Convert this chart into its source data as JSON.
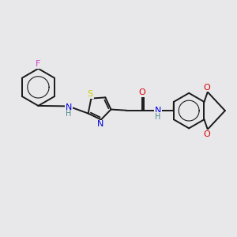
{
  "bg_color": "#e8e8eb",
  "bond_color": "#1a1a1a",
  "atom_colors": {
    "F": "#cc44cc",
    "N": "#0000dd",
    "S": "#cccc00",
    "O": "#dd0000",
    "H": "#448888",
    "C": "#1a1a1a"
  },
  "figsize": [
    3.0,
    3.0
  ],
  "dpi": 100,
  "xlim": [
    0,
    12
  ],
  "ylim": [
    0,
    12
  ]
}
